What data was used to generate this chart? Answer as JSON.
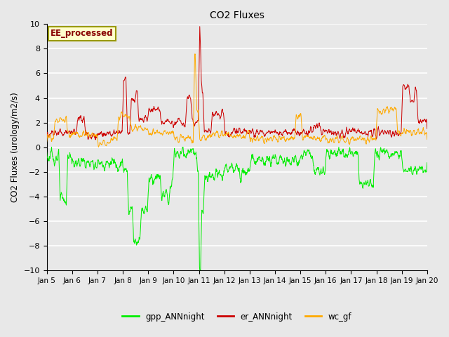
{
  "title": "CO2 Fluxes",
  "ylabel": "CO2 Fluxes (urology/m2/s)",
  "ylim": [
    -10,
    10
  ],
  "yticks": [
    -10,
    -8,
    -6,
    -4,
    -2,
    0,
    2,
    4,
    6,
    8,
    10
  ],
  "xtick_labels": [
    "Jan 5",
    "Jan 6",
    "Jan 7",
    "Jan 8",
    "Jan 9",
    "Jan 10",
    "Jan 11",
    "Jan 12",
    "Jan 13",
    "Jan 14",
    "Jan 15",
    "Jan 16",
    "Jan 17",
    "Jan 18",
    "Jan 19",
    "Jan 20"
  ],
  "n_points": 1500,
  "plot_bg": "#e8e8e8",
  "fig_bg": "#e8e8e8",
  "grid_color": "#ffffff",
  "line_colors": {
    "gpp": "#00ee00",
    "er": "#cc0000",
    "wc": "#ffaa00"
  },
  "line_width": 0.7,
  "legend_labels": [
    "gpp_ANNnight",
    "er_ANNnight",
    "wc_gf"
  ],
  "annotation_text": "EE_processed",
  "annotation_bg": "#ffffcc",
  "annotation_border": "#999900",
  "annotation_color": "#880000"
}
